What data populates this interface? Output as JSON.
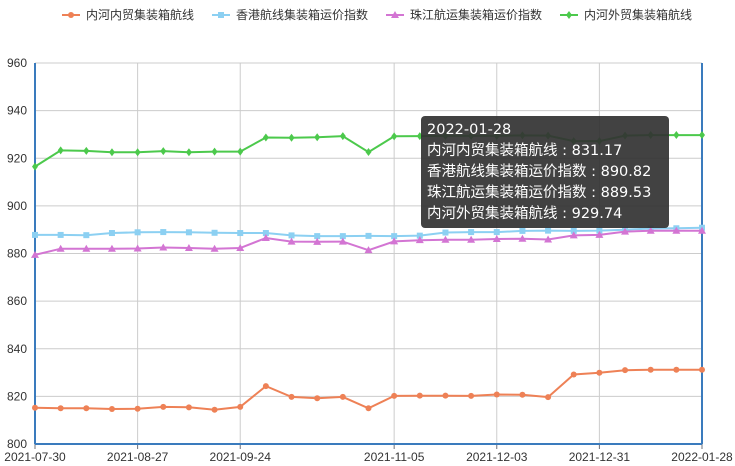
{
  "chart_data": {
    "type": "line",
    "x": [
      "2021-07-30",
      "2021-08-06",
      "2021-08-13",
      "2021-08-20",
      "2021-08-27",
      "2021-09-03",
      "2021-09-10",
      "2021-09-17",
      "2021-09-24",
      "2021-10-01",
      "2021-10-08",
      "2021-10-15",
      "2021-10-22",
      "2021-10-29",
      "2021-11-05",
      "2021-11-12",
      "2021-11-19",
      "2021-11-26",
      "2021-12-03",
      "2021-12-10",
      "2021-12-17",
      "2021-12-24",
      "2021-12-31",
      "2022-01-07",
      "2022-01-14",
      "2022-01-21",
      "2022-01-28"
    ],
    "x_ticks": [
      "2021-07-30",
      "2021-08-27",
      "2021-09-24",
      "2021-11-05",
      "2021-12-03",
      "2021-12-31",
      "2022-01-28"
    ],
    "ylim": [
      800,
      960
    ],
    "y_ticks": [
      "800",
      "820",
      "840",
      "860",
      "880",
      "900",
      "920",
      "940",
      "960"
    ],
    "grid": true,
    "legend_position": "top-center",
    "series": [
      {
        "name": "内河内贸集装箱航线",
        "color": "#ee8156",
        "marker": "circle",
        "values": [
          815.2,
          815.0,
          815.0,
          814.7,
          814.8,
          815.6,
          815.4,
          814.4,
          815.6,
          824.3,
          819.8,
          819.2,
          819.8,
          815.0,
          820.2,
          820.3,
          820.3,
          820.2,
          820.8,
          820.7,
          819.7,
          829.2,
          829.9,
          831.0,
          831.17,
          831.17,
          831.17
        ]
      },
      {
        "name": "香港航线集装箱运价指数",
        "color": "#8cd0f2",
        "marker": "square",
        "values": [
          887.8,
          887.8,
          887.7,
          888.6,
          888.9,
          889.0,
          888.9,
          888.7,
          888.6,
          888.6,
          887.6,
          887.3,
          887.3,
          887.4,
          887.3,
          887.5,
          888.8,
          889.0,
          889.0,
          889.5,
          889.6,
          889.5,
          889.6,
          890.0,
          890.5,
          890.6,
          890.82
        ]
      },
      {
        "name": "珠江航运集装箱运价指数",
        "color": "#d375d3",
        "marker": "triangle",
        "values": [
          879.4,
          882.0,
          882.0,
          882.0,
          882.1,
          882.5,
          882.3,
          882.0,
          882.3,
          886.5,
          885.0,
          884.9,
          885.0,
          881.4,
          885.1,
          885.6,
          885.8,
          885.8,
          886.1,
          886.2,
          885.9,
          887.6,
          887.8,
          889.2,
          889.53,
          889.53,
          889.53
        ]
      },
      {
        "name": "内河外贸集装箱航线",
        "color": "#4cc94c",
        "marker": "diamond",
        "values": [
          916.5,
          923.3,
          923.1,
          922.5,
          922.5,
          923.0,
          922.5,
          922.8,
          922.8,
          928.7,
          928.6,
          928.8,
          929.3,
          922.6,
          929.2,
          929.3,
          929.4,
          929.4,
          929.4,
          929.6,
          929.5,
          927.2,
          927.2,
          929.5,
          929.74,
          929.74,
          929.74
        ]
      }
    ]
  },
  "tooltip": {
    "date": "2022-01-28",
    "lines": [
      "内河内贸集装箱航线 : 831.17",
      "香港航线集装箱运价指数 : 890.82",
      "珠江航运集装箱运价指数 : 889.53",
      "内河外贸集装箱航线 : 929.74"
    ]
  }
}
